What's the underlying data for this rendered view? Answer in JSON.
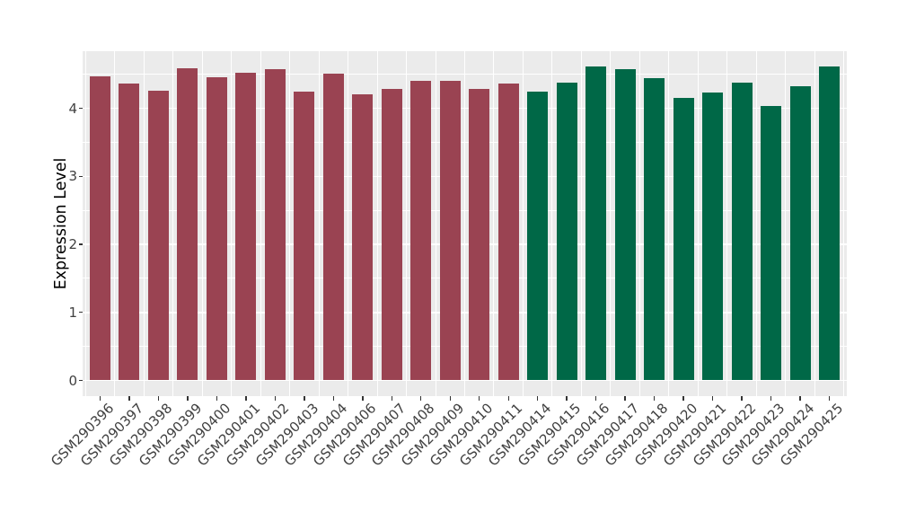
{
  "chart_data": {
    "type": "bar",
    "title": "",
    "xlabel": "",
    "ylabel": "Expression Level",
    "categories": [
      "GSM290396",
      "GSM290397",
      "GSM290398",
      "GSM290399",
      "GSM290400",
      "GSM290401",
      "GSM290402",
      "GSM290403",
      "GSM290404",
      "GSM290406",
      "GSM290407",
      "GSM290408",
      "GSM290409",
      "GSM290410",
      "GSM290411",
      "GSM290414",
      "GSM290415",
      "GSM290416",
      "GSM290417",
      "GSM290418",
      "GSM290420",
      "GSM290421",
      "GSM290422",
      "GSM290423",
      "GSM290424",
      "GSM290425"
    ],
    "values": [
      4.47,
      4.36,
      4.26,
      4.59,
      4.46,
      4.52,
      4.58,
      4.25,
      4.51,
      4.21,
      4.29,
      4.41,
      4.41,
      4.29,
      4.37,
      4.25,
      4.38,
      4.61,
      4.58,
      4.45,
      4.15,
      4.23,
      4.38,
      4.04,
      4.32,
      4.62
    ],
    "bar_colors": [
      "#9A4352",
      "#9A4352",
      "#9A4352",
      "#9A4352",
      "#9A4352",
      "#9A4352",
      "#9A4352",
      "#9A4352",
      "#9A4352",
      "#9A4352",
      "#9A4352",
      "#9A4352",
      "#9A4352",
      "#9A4352",
      "#9A4352",
      "#006847",
      "#006847",
      "#006847",
      "#006847",
      "#006847",
      "#006847",
      "#006847",
      "#006847",
      "#006847",
      "#006847",
      "#006847"
    ],
    "groups": [
      {
        "name": "group-maroon",
        "color": "#9A4352",
        "first": "GSM290396",
        "last": "GSM290411",
        "count": 15
      },
      {
        "name": "group-green",
        "color": "#006847",
        "first": "GSM290414",
        "last": "GSM290425",
        "count": 11
      }
    ],
    "yticks": [
      0,
      1,
      2,
      3,
      4
    ],
    "ylim": [
      -0.23,
      4.84
    ],
    "grid": "on",
    "legend": "none",
    "panel_bg": "#EBEBEB",
    "grid_color": "#FFFFFF",
    "axis_text_color": "#404040",
    "tick_color": "#333333"
  }
}
